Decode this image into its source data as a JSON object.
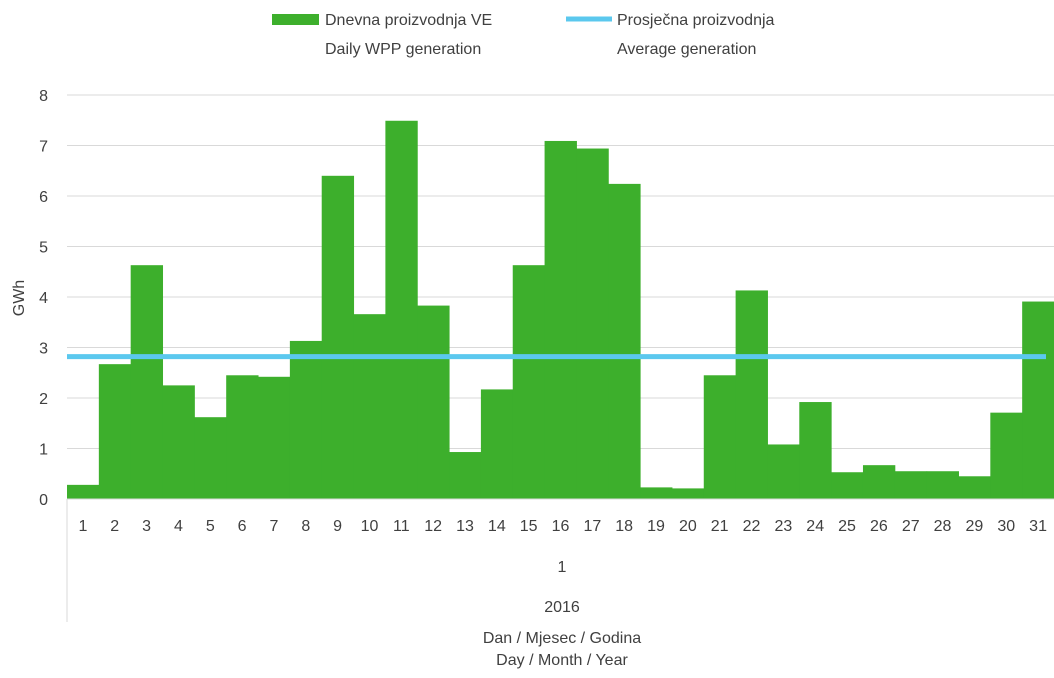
{
  "chart_data": {
    "type": "bar",
    "ylabel": "GWh",
    "ylim": [
      0,
      8
    ],
    "yticks": [
      0,
      1,
      2,
      3,
      4,
      5,
      6,
      7,
      8
    ],
    "grid": true,
    "legend_position": "top",
    "categories": [
      "1",
      "2",
      "3",
      "4",
      "5",
      "6",
      "7",
      "8",
      "9",
      "10",
      "11",
      "12",
      "13",
      "14",
      "15",
      "16",
      "17",
      "18",
      "19",
      "20",
      "21",
      "22",
      "23",
      "24",
      "25",
      "26",
      "27",
      "28",
      "29",
      "30",
      "31"
    ],
    "series": [
      {
        "name_line1": "Dnevna proizvodnja VE",
        "name_line2": "Daily WPP generation",
        "type": "bar",
        "color": "#3daf2c",
        "values": [
          0.28,
          2.67,
          4.63,
          2.25,
          1.62,
          2.45,
          2.42,
          3.13,
          6.4,
          3.66,
          7.49,
          3.83,
          0.93,
          2.17,
          4.63,
          7.09,
          6.94,
          6.24,
          0.23,
          0.21,
          2.45,
          4.13,
          1.08,
          1.92,
          0.53,
          0.67,
          0.55,
          0.55,
          0.45,
          1.71,
          3.91
        ]
      },
      {
        "name_line1": "Prosječna proizvodnja",
        "name_line2": "Average generation",
        "type": "line",
        "color": "#5bc8ee",
        "value": 2.82
      }
    ],
    "month_label": "1",
    "year_label": "2016",
    "xlabel_line1": "Dan / Mjesec / Godina",
    "xlabel_line2": "Day / Month / Year"
  }
}
